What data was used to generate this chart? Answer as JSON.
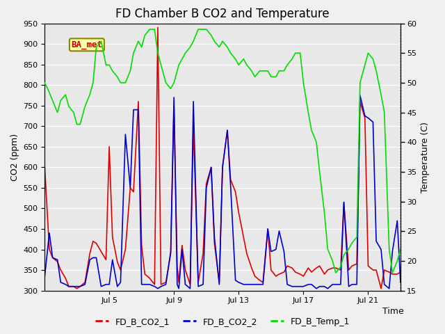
{
  "title": "FD Chamber B CO2 and Temperature",
  "ylabel_left": "CO2 (ppm)",
  "ylabel_right": "Temperature (C)",
  "xlabel": "Time",
  "ylim_left": [
    300,
    950
  ],
  "ylim_right": [
    15,
    60
  ],
  "yticks_left": [
    300,
    350,
    400,
    450,
    500,
    550,
    600,
    650,
    700,
    750,
    800,
    850,
    900,
    950
  ],
  "yticks_right": [
    15,
    20,
    25,
    30,
    35,
    40,
    45,
    50,
    55,
    60
  ],
  "xtick_labels": [
    "Jul 5",
    "Jul 9",
    "Jul 13",
    "Jul 17",
    "Jul 21"
  ],
  "xtick_positions": [
    4,
    8,
    12,
    16,
    20
  ],
  "color_co2_1": "#dd0000",
  "color_co2_2": "#0000cc",
  "color_temp": "#00dd00",
  "legend_label_1": "FD_B_CO2_1",
  "legend_label_2": "FD_B_CO2_2",
  "legend_label_3": "FD_B_Temp_1",
  "badge_text": "BA_met",
  "badge_bg": "#ffffaa",
  "badge_border": "#888800",
  "badge_text_color": "#cc0000",
  "background_color": "#f0f0f0",
  "plot_bg": "#e8e8e8",
  "grid_color": "#ffffff",
  "title_fontsize": 12,
  "axis_label_fontsize": 9,
  "tick_fontsize": 8,
  "legend_fontsize": 9,
  "co2_1_x": [
    0,
    0.3,
    0.5,
    0.8,
    1.0,
    1.3,
    1.5,
    1.8,
    2.0,
    2.2,
    2.5,
    2.8,
    3.0,
    3.2,
    3.5,
    3.8,
    4.0,
    4.2,
    4.5,
    4.7,
    5.0,
    5.3,
    5.5,
    5.8,
    6.0,
    6.2,
    6.5,
    6.8,
    7.0,
    7.2,
    7.5,
    7.8,
    8.0,
    8.2,
    8.3,
    8.5,
    8.7,
    9.0,
    9.2,
    9.5,
    9.8,
    10.0,
    10.3,
    10.5,
    10.8,
    11.0,
    11.3,
    11.5,
    11.8,
    12.0,
    12.3,
    12.5,
    12.8,
    13.0,
    13.3,
    13.5,
    13.8,
    14.0,
    14.3,
    14.5,
    14.8,
    15.0,
    15.3,
    15.5,
    15.8,
    16.0,
    16.3,
    16.5,
    16.8,
    17.0,
    17.3,
    17.5,
    17.8,
    18.0,
    18.3,
    18.5,
    18.8,
    19.0,
    19.3,
    19.5,
    19.8,
    20.0,
    20.3,
    20.5,
    20.8,
    21.0,
    21.3,
    21.5,
    21.8,
    22.0
  ],
  "co2_1_y": [
    610,
    400,
    380,
    370,
    350,
    330,
    310,
    310,
    305,
    310,
    320,
    390,
    420,
    415,
    395,
    375,
    650,
    430,
    370,
    350,
    400,
    550,
    540,
    760,
    410,
    340,
    330,
    315,
    940,
    315,
    320,
    390,
    750,
    360,
    320,
    410,
    350,
    315,
    700,
    320,
    390,
    560,
    600,
    415,
    320,
    600,
    690,
    570,
    540,
    490,
    430,
    390,
    355,
    335,
    325,
    320,
    450,
    350,
    335,
    340,
    345,
    360,
    355,
    345,
    340,
    335,
    355,
    345,
    355,
    360,
    340,
    350,
    355,
    355,
    350,
    515,
    350,
    360,
    365,
    760,
    720,
    360,
    350,
    350,
    305,
    350,
    345,
    340,
    340,
    345
  ],
  "co2_2_x": [
    0,
    0.3,
    0.5,
    0.8,
    1.0,
    1.3,
    1.5,
    1.8,
    2.0,
    2.2,
    2.5,
    2.8,
    3.0,
    3.2,
    3.5,
    3.8,
    4.0,
    4.2,
    4.5,
    4.7,
    5.0,
    5.3,
    5.5,
    5.8,
    6.0,
    6.2,
    6.5,
    6.8,
    7.0,
    7.2,
    7.5,
    7.8,
    8.0,
    8.2,
    8.3,
    8.5,
    8.7,
    9.0,
    9.2,
    9.5,
    9.8,
    10.0,
    10.3,
    10.5,
    10.8,
    11.0,
    11.3,
    11.5,
    11.8,
    12.0,
    12.3,
    12.5,
    12.8,
    13.0,
    13.3,
    13.5,
    13.8,
    14.0,
    14.3,
    14.5,
    14.8,
    15.0,
    15.3,
    15.5,
    15.8,
    16.0,
    16.3,
    16.5,
    16.8,
    17.0,
    17.3,
    17.5,
    17.8,
    18.0,
    18.3,
    18.5,
    18.8,
    19.0,
    19.3,
    19.5,
    19.8,
    20.0,
    20.3,
    20.5,
    20.8,
    21.0,
    21.3,
    21.5,
    21.8,
    22.0
  ],
  "co2_2_y": [
    330,
    440,
    380,
    375,
    320,
    315,
    310,
    310,
    310,
    310,
    315,
    375,
    380,
    380,
    310,
    315,
    315,
    375,
    310,
    320,
    680,
    550,
    740,
    740,
    315,
    315,
    315,
    310,
    305,
    310,
    315,
    395,
    770,
    315,
    305,
    400,
    315,
    305,
    760,
    310,
    315,
    550,
    600,
    430,
    315,
    600,
    690,
    555,
    325,
    320,
    315,
    315,
    315,
    315,
    315,
    315,
    450,
    395,
    400,
    445,
    395,
    315,
    310,
    310,
    310,
    310,
    315,
    315,
    305,
    310,
    310,
    305,
    315,
    315,
    315,
    515,
    310,
    315,
    315,
    775,
    725,
    720,
    710,
    420,
    400,
    315,
    305,
    395,
    470,
    320
  ],
  "temp_x": [
    0,
    0.2,
    0.5,
    0.8,
    1.0,
    1.3,
    1.5,
    1.8,
    2.0,
    2.2,
    2.5,
    2.8,
    3.0,
    3.2,
    3.5,
    3.8,
    4.0,
    4.2,
    4.5,
    4.7,
    5.0,
    5.3,
    5.5,
    5.8,
    6.0,
    6.2,
    6.5,
    6.8,
    7.0,
    7.2,
    7.5,
    7.8,
    8.0,
    8.2,
    8.3,
    8.5,
    8.7,
    9.0,
    9.2,
    9.5,
    9.8,
    10.0,
    10.3,
    10.5,
    10.8,
    11.0,
    11.3,
    11.5,
    11.8,
    12.0,
    12.3,
    12.5,
    12.8,
    13.0,
    13.3,
    13.5,
    13.8,
    14.0,
    14.3,
    14.5,
    14.8,
    15.0,
    15.3,
    15.5,
    15.8,
    16.0,
    16.3,
    16.5,
    16.8,
    17.0,
    17.3,
    17.5,
    17.8,
    18.0,
    18.3,
    18.5,
    18.8,
    19.0,
    19.3,
    19.5,
    19.8,
    20.0,
    20.3,
    20.5,
    20.8,
    21.0,
    21.3,
    21.5,
    21.8,
    22.0
  ],
  "temp_y": [
    50,
    49,
    47,
    45,
    47,
    48,
    46,
    45,
    43,
    43,
    46,
    48,
    50,
    56,
    57,
    53,
    53,
    52,
    51,
    50,
    50,
    52,
    55,
    57,
    56,
    58,
    59,
    59,
    55,
    53,
    50,
    49,
    50,
    52,
    53,
    54,
    55,
    56,
    57,
    59,
    59,
    59,
    58,
    57,
    56,
    57,
    56,
    55,
    54,
    53,
    54,
    53,
    52,
    51,
    52,
    52,
    52,
    51,
    51,
    52,
    52,
    53,
    54,
    55,
    55,
    50,
    45,
    42,
    40,
    35,
    28,
    22,
    20,
    18,
    19,
    21,
    22,
    23,
    24,
    50,
    53,
    55,
    54,
    52,
    48,
    45,
    22,
    18,
    20,
    22
  ]
}
